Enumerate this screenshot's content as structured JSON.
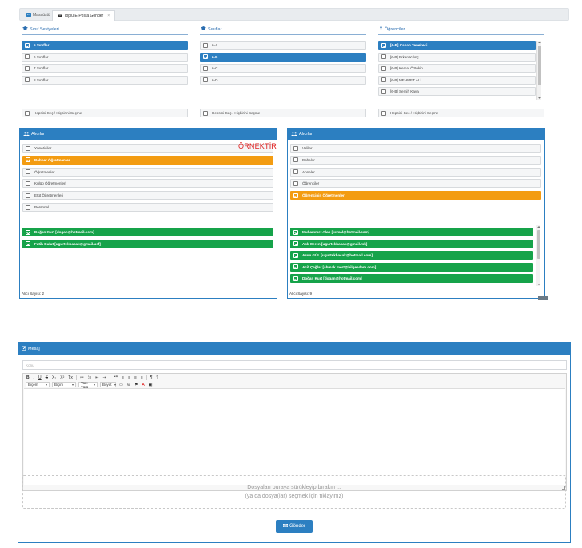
{
  "tabs": [
    {
      "label": "Masaüstü",
      "icon": "dashboard-icon"
    },
    {
      "label": "Toplu E-Posta Gönder",
      "icon": "envelope-icon",
      "close": "×"
    }
  ],
  "sinif_seviyeleri": {
    "title": "Sınıf Seviyeleri",
    "items": [
      "5.Sınıflar",
      "6.Sınıflar",
      "7.Sınıflar",
      "8.Sınıflar"
    ],
    "selected": [
      true,
      false,
      false,
      false
    ],
    "select_all": "Hepsini Seç / Hiçbirini Seçme"
  },
  "siniflar": {
    "title": "Sınıflar",
    "items": [
      "6-A",
      "6-B",
      "6-C",
      "6-D"
    ],
    "selected": [
      false,
      true,
      false,
      false
    ],
    "select_all": "Hepsini Seç / Hiçbirini Seçme"
  },
  "ogrenciler": {
    "title": "Öğrenciler",
    "items": [
      "[6-B] Canan Tenekeci",
      "[6-B] Erkan Kılınç",
      "[6-B] Kemal Öztekin",
      "[6-B] MEHMET ALİ",
      "[6-B] Semih Kaya"
    ],
    "selected": [
      true,
      false,
      false,
      false,
      false
    ],
    "select_all": "Hepsini Seç / Hiçbirini Seçme"
  },
  "alicilar_left": {
    "title": "Alıcılar",
    "items": [
      "Yöneticiler",
      "Rehber Öğretmenler",
      "Öğretmenler",
      "Kulüp Öğretmenleri",
      "Etüt Öğretmenleri",
      "Personel"
    ],
    "selected": [
      false,
      true,
      false,
      false,
      false,
      false
    ],
    "recipients": [
      "Doğan Kurt [dogan@hotmail.com]",
      "Fatih Bulut [ugurtekbacak@gmail.usf]"
    ],
    "count_label": "Alıcı Sayısı: 2"
  },
  "watermark": "ÖRNEKTİR",
  "alicilar_right": {
    "title": "Alıcılar",
    "items": [
      "Veliler",
      "Babalar",
      "Anneler",
      "Öğrenciler",
      "Öğrencinin Öğretmenleri"
    ],
    "selected": [
      false,
      false,
      false,
      false,
      true
    ],
    "recipients": [
      "Muhammet Alan [kemal@hotmail.com]",
      "Aslı Ceren [ugurtekbacak@gmail.mk]",
      "Asım GÜL [ugurtekbacak@hotmail.com]",
      "Acif Çağlar [ahmak.mert@bilgeadam.com]",
      "Doğan Kurt [dogan@hotmail.com]"
    ],
    "count_label": "Alıcı Sayısı: 9"
  },
  "message": {
    "title": "Mesaj",
    "subject_placeholder": "Konu",
    "toolbar1": [
      "B",
      "I",
      "U",
      "S",
      "X₂",
      "X²",
      "Tx",
      "≔",
      "⁝≡",
      "⇤",
      "⇥",
      "❝❞",
      "≡",
      "≡",
      "≡",
      "≡",
      "¶",
      "¶"
    ],
    "toolbar2_combos": [
      "Biçem",
      "Biçim",
      "Yazı Türü",
      "Boyut"
    ],
    "toolbar2_buttons": [
      "▭",
      "⊖",
      "⚑",
      "A",
      "▣"
    ],
    "dropzone_line1": "Dosyaları buraya sürükleyip bırakın ...",
    "dropzone_line2": "(ya da dosya(lar) seçmek için tıklayınız)",
    "send_label": "Gönder"
  },
  "colors": {
    "primary": "#2c7fc1",
    "orange": "#f39c12",
    "green": "#16a34a",
    "red": "#e02020"
  }
}
